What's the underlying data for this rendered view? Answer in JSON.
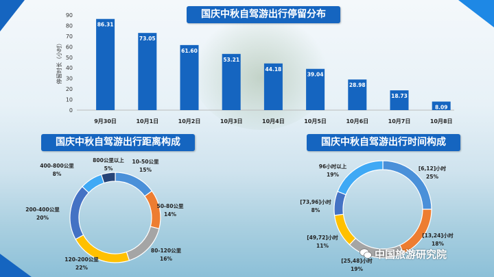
{
  "colors": {
    "bar": "#1565c0",
    "title_bg": "#1565c0"
  },
  "titles": {
    "main": "国庆中秋自驾游出行停留分布",
    "distance": "国庆中秋自驾游出行距离构成",
    "time": "国庆中秋自驾游出行时间构成"
  },
  "watermark": "中国旅游研究院",
  "chart_data": [
    {
      "type": "bar",
      "ylabel": "停留时长（小时）",
      "ylim": [
        0,
        90
      ],
      "yticks": [
        0,
        10,
        20,
        30,
        40,
        50,
        60,
        70,
        80,
        90
      ],
      "categories": [
        "9月30日",
        "10月1日",
        "10月2日",
        "10月3日",
        "10月4日",
        "10月5日",
        "10月6日",
        "10月7日",
        "10月8日"
      ],
      "values": [
        86.31,
        73.05,
        61.6,
        53.21,
        44.18,
        39.04,
        28.98,
        18.73,
        8.09
      ],
      "labels": [
        "86.31",
        "73.05",
        "61.60",
        "53.21",
        "44.18",
        "39.04",
        "28.98",
        "18.73",
        "8.09"
      ]
    },
    {
      "type": "pie",
      "donut": true,
      "slices": [
        {
          "name": "10-50公里",
          "value": 15,
          "label": "15%",
          "color": "#4a90d9"
        },
        {
          "name": "50-80公里",
          "value": 14,
          "label": "14%",
          "color": "#ed7d31"
        },
        {
          "name": "80-120公里",
          "value": 16,
          "label": "16%",
          "color": "#a5a5a5"
        },
        {
          "name": "120-200公里",
          "value": 22,
          "label": "22%",
          "color": "#ffc000"
        },
        {
          "name": "200-400公里",
          "value": 20,
          "label": "20%",
          "color": "#4472c4"
        },
        {
          "name": "400-800公里",
          "value": 8,
          "label": "8%",
          "color": "#3fa9f5"
        },
        {
          "name": "800公里以上",
          "value": 5,
          "label": "5%",
          "color": "#264478"
        }
      ]
    },
    {
      "type": "pie",
      "donut": true,
      "slices": [
        {
          "name": "[6,12]小时",
          "value": 25,
          "label": "25%",
          "color": "#4a90d9"
        },
        {
          "name": "[13,24]小时",
          "value": 18,
          "label": "18%",
          "color": "#ed7d31"
        },
        {
          "name": "[25,48]小时",
          "value": 19,
          "label": "19%",
          "color": "#a5a5a5"
        },
        {
          "name": "[49,72]小时",
          "value": 11,
          "label": "11%",
          "color": "#ffc000"
        },
        {
          "name": "[73,96]小时",
          "value": 8,
          "label": "8%",
          "color": "#4472c4"
        },
        {
          "name": "96小时以上",
          "value": 19,
          "label": "19%",
          "color": "#3fa9f5"
        }
      ]
    }
  ]
}
